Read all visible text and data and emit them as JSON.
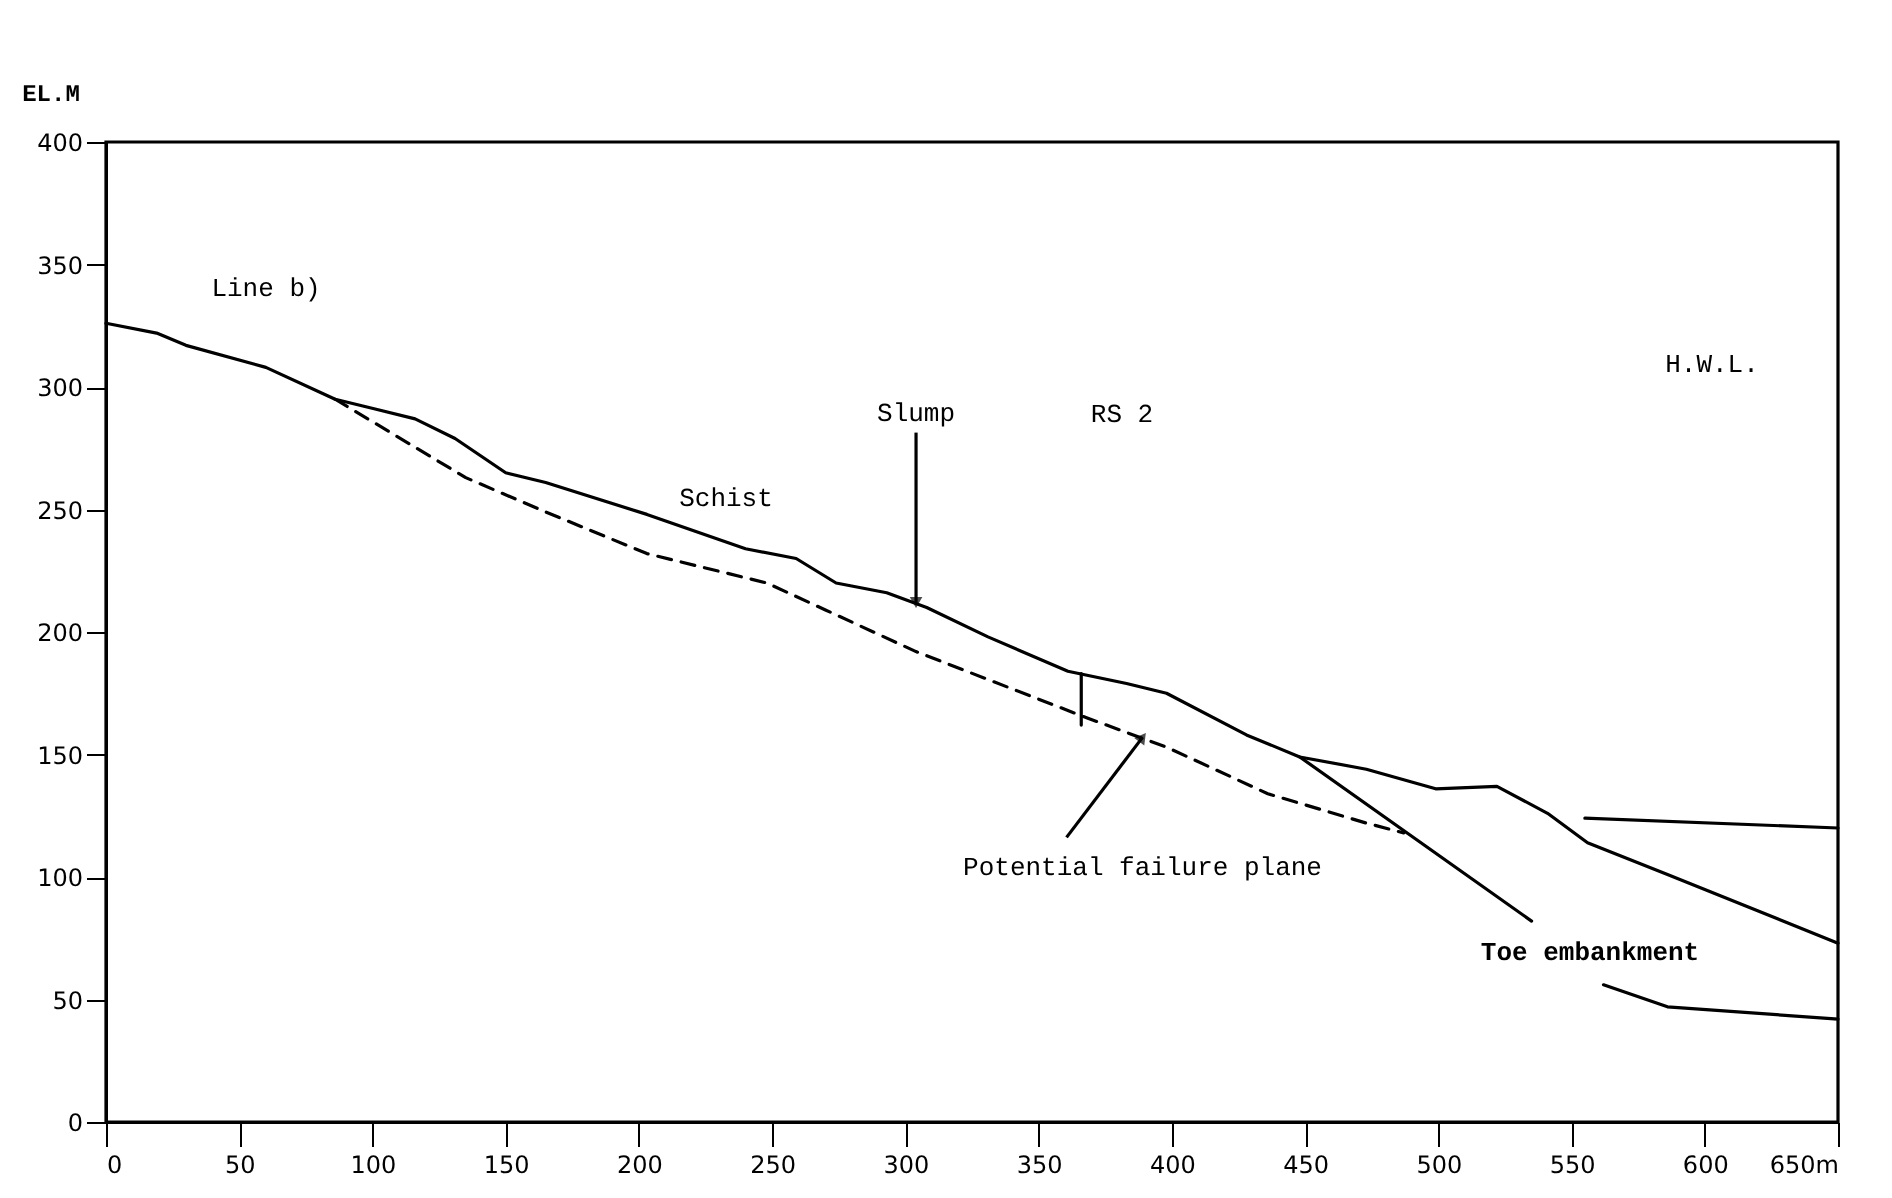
{
  "chart_data": {
    "type": "line",
    "ylabel": "EL.M",
    "xlim": [
      0,
      650
    ],
    "ylim": [
      0,
      400
    ],
    "xticks": [
      0,
      50,
      100,
      150,
      200,
      250,
      300,
      350,
      400,
      450,
      500,
      550,
      600,
      {
        "value": 650,
        "label": "650m"
      }
    ],
    "yticks": [
      0,
      50,
      100,
      150,
      200,
      250,
      300,
      350,
      400
    ],
    "grid": false,
    "marker": "none",
    "series": [
      {
        "color": "#000000",
        "line_style": "solid",
        "x": [
          0,
          19,
          30,
          60,
          86,
          101,
          116,
          131,
          150,
          165,
          203,
          240,
          259,
          274,
          293,
          308,
          331,
          361,
          383,
          398,
          428,
          448,
          473,
          499,
          522,
          541,
          556,
          586,
          650
        ],
        "values": [
          326,
          322,
          317,
          308,
          295,
          291,
          287,
          279,
          265,
          261,
          248,
          234,
          230,
          220,
          216,
          210,
          198,
          184,
          179,
          175,
          158,
          149,
          144,
          136,
          137,
          126,
          114,
          101,
          73
        ]
      },
      {
        "color": "#000000",
        "line_style": "dashed",
        "x": [
          86,
          135,
          165,
          203,
          248,
          270,
          304,
          368,
          398,
          436,
          473,
          487
        ],
        "values": [
          295,
          263,
          249,
          232,
          220,
          209,
          192,
          165,
          153,
          134,
          122,
          118
        ]
      },
      {
        "color": "#000000",
        "line_style": "solid",
        "x": [
          448,
          535
        ],
        "values": [
          149,
          82
        ]
      },
      {
        "color": "#000000",
        "line_style": "solid",
        "x": [
          555,
          650
        ],
        "values": [
          124,
          120
        ]
      },
      {
        "color": "#000000",
        "line_style": "solid",
        "x": [
          562,
          586,
          650
        ],
        "values": [
          56,
          47,
          42
        ]
      },
      {
        "color": "#000000",
        "line_style": "solid",
        "x": [
          366,
          366
        ],
        "values": [
          183,
          162
        ]
      }
    ],
    "annotations": [
      "Line  b)",
      {
        "text": "Slump",
        "x": 304,
        "y": 212
      },
      "Schist",
      "RS 2",
      "H.W.L.",
      {
        "text": "Potential failure plane",
        "x": 389,
        "y": 157
      },
      "Toe embankment"
    ]
  }
}
